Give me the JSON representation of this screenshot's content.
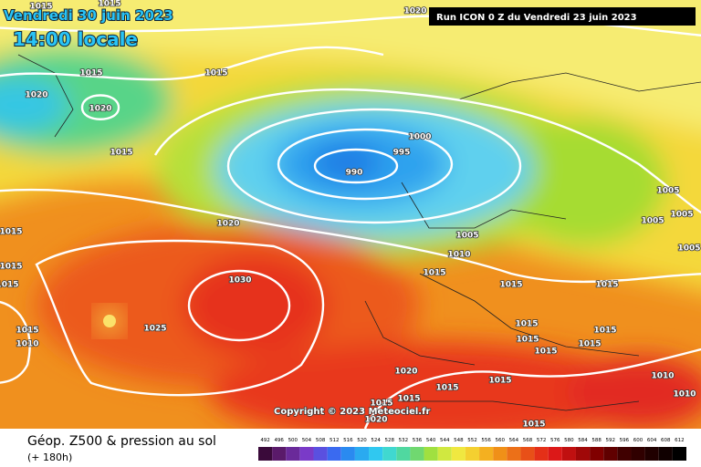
{
  "header": {
    "date": "Vendredi 30 juin 2023",
    "time": "14:00 locale",
    "run": "Run ICON 0 Z du Vendredi 23 juin 2023"
  },
  "isobar_labels": [
    "1020",
    "1015",
    "1015",
    "1015",
    "1015",
    "1020",
    "1020",
    "1015",
    "1000",
    "995",
    "990",
    "1020",
    "1005",
    "1010",
    "1015",
    "1015",
    "1015",
    "1005",
    "1005",
    "1005",
    "1005",
    "1015",
    "1015",
    "1015",
    "1030",
    "1025",
    "1015",
    "1010",
    "1015",
    "1015",
    "1015",
    "1015",
    "1015",
    "1020",
    "1015",
    "1015",
    "1015",
    "1015",
    "1020",
    "1015",
    "1010",
    "1010"
  ],
  "copyright": "Copyright © 2023 Meteociel.fr",
  "legend": {
    "title": "Géop. Z500 & pression au sol",
    "subtitle": "(+ 180h)",
    "scale": [
      492,
      496,
      500,
      504,
      508,
      512,
      516,
      520,
      524,
      528,
      532,
      536,
      540,
      544,
      548,
      552,
      556,
      560,
      564,
      568,
      572,
      576,
      580,
      584,
      588,
      592,
      596,
      600,
      604,
      608,
      612
    ]
  }
}
